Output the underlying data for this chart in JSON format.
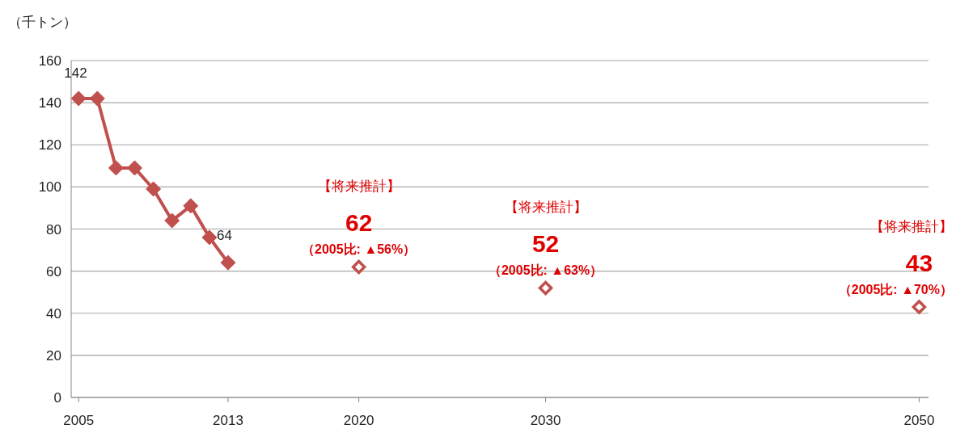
{
  "chart_data": {
    "type": "line",
    "ylabel": "（千トン）",
    "x": [
      2005,
      2006,
      2007,
      2008,
      2009,
      2010,
      2011,
      2012,
      2013
    ],
    "xlim": [
      2004.6,
      2050.5
    ],
    "xticks": [
      2005,
      2013,
      2020,
      2030,
      2050
    ],
    "ylim": [
      0,
      160
    ],
    "yticks": [
      0,
      20,
      40,
      60,
      80,
      100,
      120,
      140,
      160
    ],
    "grid": "y",
    "marker": "diamond",
    "line_style": "solid",
    "series": [
      {
        "color": "#c0504d",
        "values": [
          142,
          142,
          109,
          109,
          99,
          84,
          91,
          76,
          64
        ],
        "value_labels": [
          "142",
          null,
          null,
          null,
          null,
          null,
          null,
          null,
          "64"
        ]
      },
      {
        "type": "scatter",
        "color": "#c0504d",
        "x": [
          2020,
          2030,
          2050
        ],
        "values": [
          62,
          52,
          43
        ],
        "value_labels": [
          "62",
          "52",
          "43"
        ]
      }
    ],
    "annotations": [
      "【将来推計】",
      "（2005比: ▲56%）",
      "【将来推計】",
      "（2005比: ▲63%）",
      "【将来推計】",
      "（2005比: ▲70%）"
    ]
  }
}
